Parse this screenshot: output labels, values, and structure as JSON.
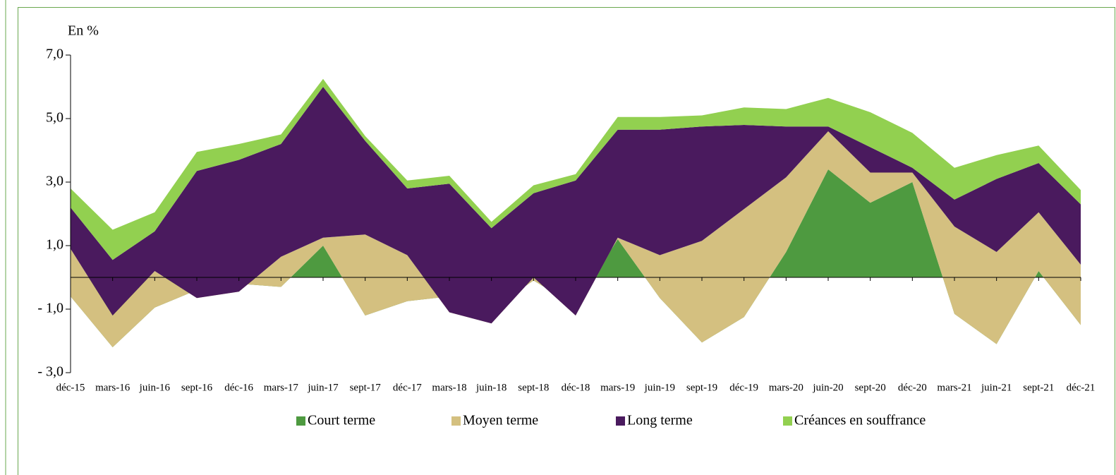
{
  "chart_data": {
    "type": "stacked_area",
    "y_axis_title": "En %",
    "categories": [
      "déc-15",
      "mars-16",
      "juin-16",
      "sept-16",
      "déc-16",
      "mars-17",
      "juin-17",
      "sept-17",
      "déc-17",
      "mars-18",
      "juin-18",
      "sept-18",
      "déc-18",
      "mars-19",
      "juin-19",
      "sept-19",
      "déc-19",
      "mars-20",
      "juin-20",
      "sept-20",
      "déc-20",
      "mars-21",
      "juin-21",
      "sept-21",
      "déc-21"
    ],
    "series": [
      {
        "name": "Court terme",
        "color": "#4e9a40",
        "values": [
          -0.6,
          -2.2,
          -0.95,
          -0.4,
          -0.2,
          -0.3,
          1.0,
          -1.2,
          -0.75,
          -0.6,
          -1.0,
          -0.1,
          -0.9,
          1.2,
          -0.65,
          -2.05,
          -1.25,
          0.8,
          3.4,
          2.35,
          3.0,
          -1.15,
          -2.1,
          0.2,
          -1.5
        ]
      },
      {
        "name": "Moyen terme",
        "color": "#d4c080",
        "values": [
          1.5,
          1.0,
          1.15,
          -0.25,
          -0.25,
          0.95,
          0.25,
          2.55,
          1.45,
          -0.5,
          -0.45,
          0.1,
          -0.3,
          0.05,
          1.35,
          3.2,
          3.4,
          2.35,
          1.2,
          0.95,
          0.3,
          2.75,
          2.9,
          1.85,
          1.9
        ]
      },
      {
        "name": "Long terme",
        "color": "#4a1a5e",
        "values": [
          1.3,
          1.75,
          1.25,
          4.0,
          4.15,
          3.55,
          4.75,
          2.95,
          2.1,
          4.05,
          3.0,
          2.65,
          4.25,
          3.4,
          3.95,
          3.6,
          2.65,
          1.6,
          0.15,
          0.8,
          0.15,
          0.85,
          2.3,
          1.55,
          1.9
        ]
      },
      {
        "name": "Créances en souffrance",
        "color": "#92d050",
        "values": [
          0.6,
          0.95,
          0.6,
          0.6,
          0.5,
          0.3,
          0.25,
          0.15,
          0.25,
          0.25,
          0.2,
          0.25,
          0.2,
          0.4,
          0.4,
          0.35,
          0.55,
          0.55,
          0.9,
          1.1,
          1.1,
          1.0,
          0.75,
          0.55,
          0.45
        ]
      }
    ],
    "ylim": [
      -3,
      7
    ],
    "yticks": [
      {
        "value": 7,
        "label": "7,0"
      },
      {
        "value": 5,
        "label": "5,0"
      },
      {
        "value": 3,
        "label": "3,0"
      },
      {
        "value": 1,
        "label": "1,0"
      },
      {
        "value": -1,
        "label": "- 1,0"
      },
      {
        "value": -3,
        "label": "- 3,0"
      }
    ],
    "legend": "bottom"
  }
}
